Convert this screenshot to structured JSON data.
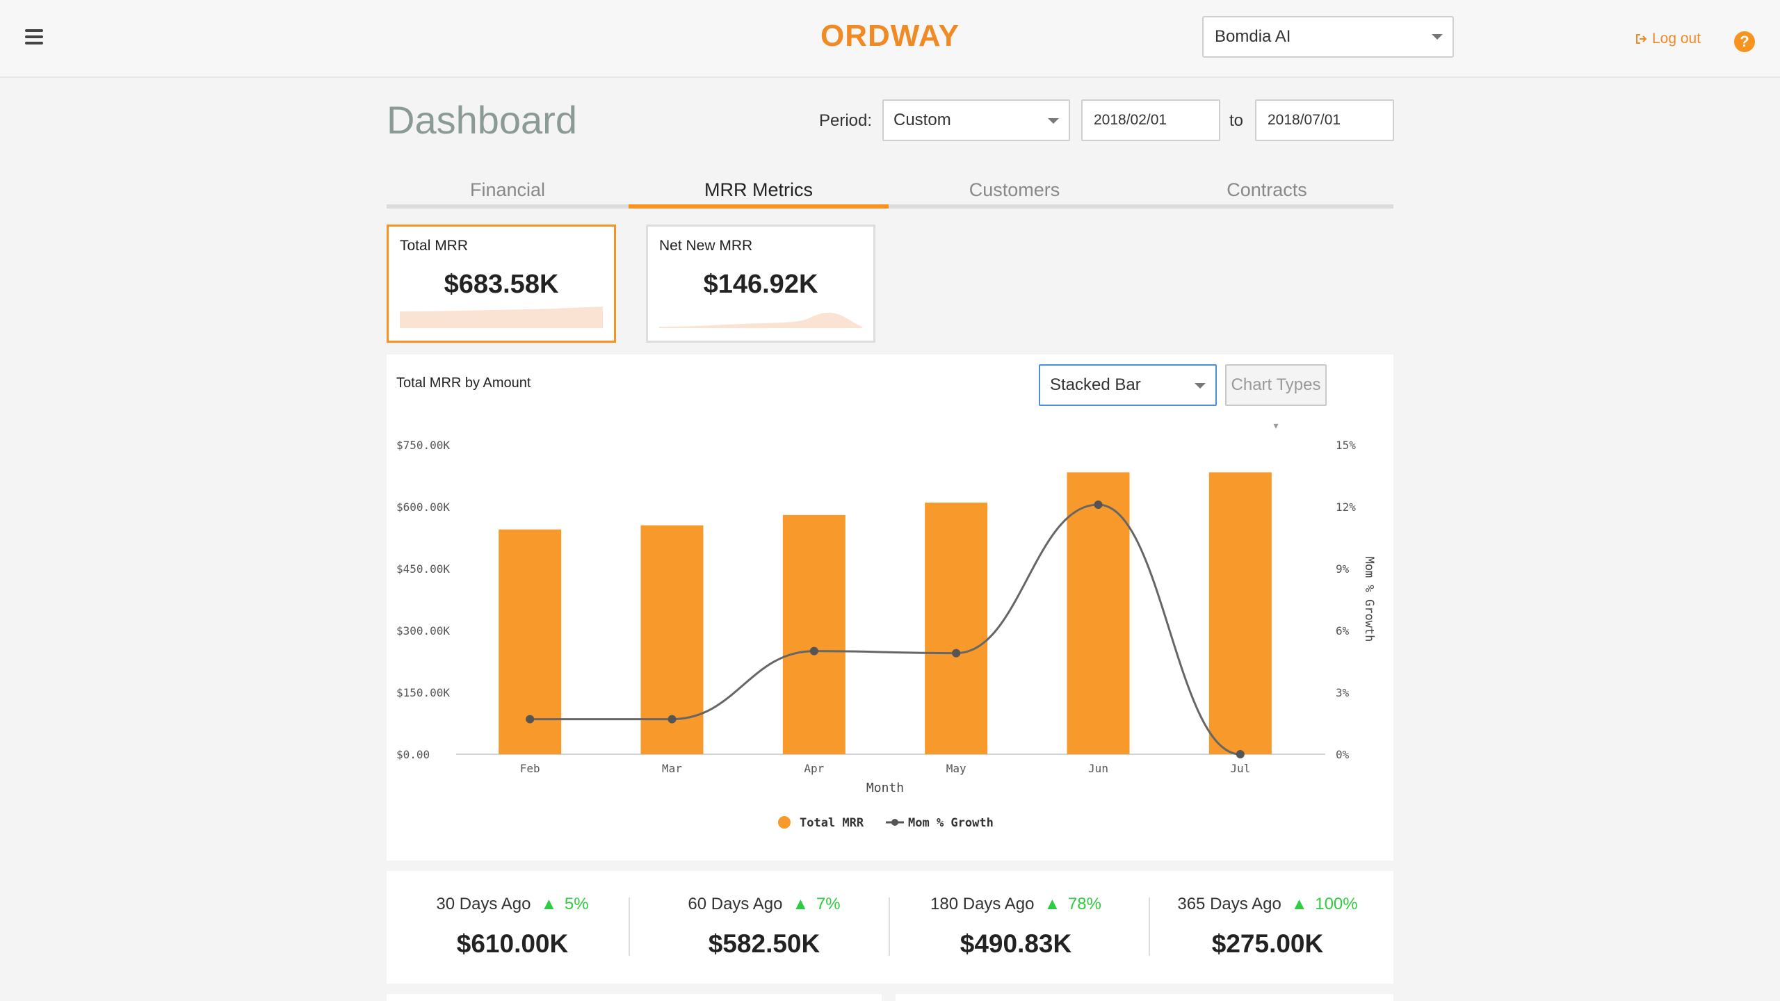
{
  "topbar": {
    "brand": "ORDWAY",
    "company": "Bomdia AI",
    "logout_label": "Log out",
    "help_label": "?"
  },
  "header": {
    "title": "Dashboard",
    "period_label": "Period:",
    "period_value": "Custom",
    "date_from": "2018/02/01",
    "to_label": "to",
    "date_to": "2018/07/01"
  },
  "tabs": [
    "Financial",
    "MRR Metrics",
    "Customers",
    "Contracts"
  ],
  "active_tab": "MRR Metrics",
  "kpis": [
    {
      "label": "Total MRR",
      "value": "$683.58K"
    },
    {
      "label": "Net New MRR",
      "value": "$146.92K"
    }
  ],
  "chart_panel": {
    "chart_type": "Stacked Bar",
    "chart_types_label": "Chart Types"
  },
  "chart_data": {
    "type": "bar",
    "title": "Total MRR by Amount",
    "categories": [
      "Feb",
      "Mar",
      "Apr",
      "May",
      "Jun",
      "Jul"
    ],
    "series": [
      {
        "name": "Total MRR",
        "type": "bar",
        "axis": "left",
        "values": [
          545000,
          555000,
          580000,
          610000,
          683580,
          683580
        ]
      },
      {
        "name": "Mom % Growth",
        "type": "line",
        "axis": "right",
        "values": [
          1.7,
          1.7,
          5.0,
          4.9,
          12.1,
          0
        ]
      }
    ],
    "xlabel": "Month",
    "ylabel": "",
    "y2label": "Mom % Growth",
    "ylim": [
      0,
      750000
    ],
    "y2lim": [
      0,
      15
    ],
    "yticks": [
      "$0.00",
      "$150.00K",
      "$300.00K",
      "$450.00K",
      "$600.00K",
      "$750.00K"
    ],
    "y2ticks": [
      "0%",
      "3%",
      "6%",
      "9%",
      "12%",
      "15%"
    ],
    "legend": "bottom-center",
    "colors": {
      "bar": "#f7992b",
      "line": "#666666"
    }
  },
  "comparisons": [
    {
      "label": "30 Days Ago",
      "change": "5%",
      "value": "$610.00K"
    },
    {
      "label": "60 Days Ago",
      "change": "7%",
      "value": "$582.50K"
    },
    {
      "label": "180 Days Ago",
      "change": "78%",
      "value": "$490.83K"
    },
    {
      "label": "365 Days Ago",
      "change": "100%",
      "value": "$275.00K"
    }
  ],
  "colors": {
    "accent": "#f7931e",
    "up": "#2ecc40",
    "title": "#8a9a94"
  }
}
